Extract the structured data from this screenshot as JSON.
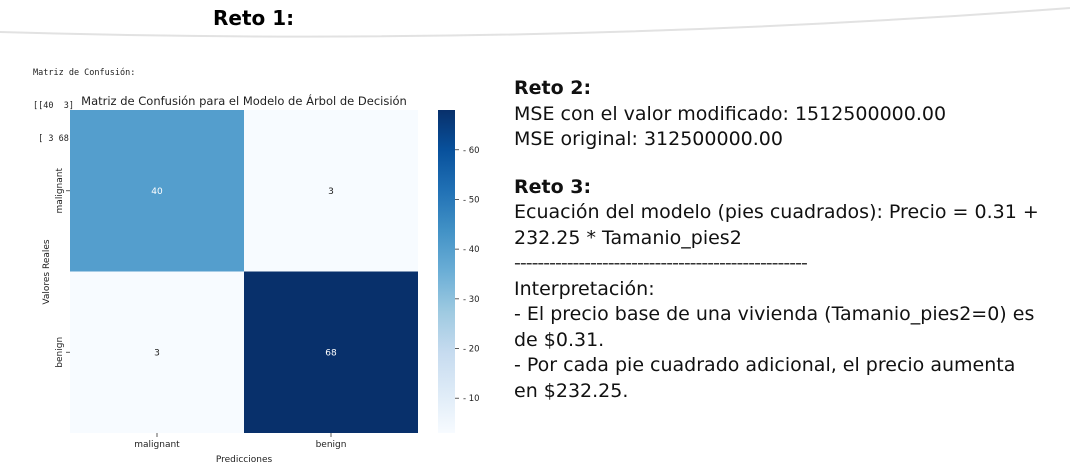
{
  "reto1": {
    "title": "Reto 1:",
    "console": {
      "line1": "Matriz de Confusión:",
      "line2": "[[40  3]",
      "line3": " [ 3 68]]"
    }
  },
  "chart_data": {
    "type": "heatmap",
    "title": "Matriz de Confusión para el Modelo de Árbol de Decisión",
    "xlabel": "Predicciones",
    "ylabel": "Valores Reales",
    "x_categories": [
      "malignant",
      "benign"
    ],
    "y_categories": [
      "malignant",
      "benign"
    ],
    "values": [
      [
        40,
        3
      ],
      [
        3,
        68
      ]
    ],
    "colormap": "Blues",
    "colorbar_ticks": [
      10,
      20,
      30,
      40,
      50,
      60
    ],
    "colorbar_range": [
      3,
      68
    ],
    "colors": {
      "low": "#f7fbff",
      "high": "#08306b"
    }
  },
  "reto2": {
    "title": "Reto 2:",
    "mse_modified": "MSE con el valor modificado: 1512500000.00",
    "mse_original": "MSE original: 312500000.00"
  },
  "reto3": {
    "title": "Reto 3:",
    "equation_line1": "Ecuación del modelo (pies cuadrados): Precio = 0.31 +",
    "equation_line2": "232.25 * Tamanio_pies2",
    "separator": "--------------------------------------------------",
    "interp_title": "Interpretación:",
    "interp1_line1": "- El precio base de una vivienda (Tamanio_pies2=0) es",
    "interp1_line2": "de $0.31.",
    "interp2_line1": "- Por cada pie cuadrado adicional, el precio aumenta",
    "interp2_line2": "en $232.25."
  }
}
